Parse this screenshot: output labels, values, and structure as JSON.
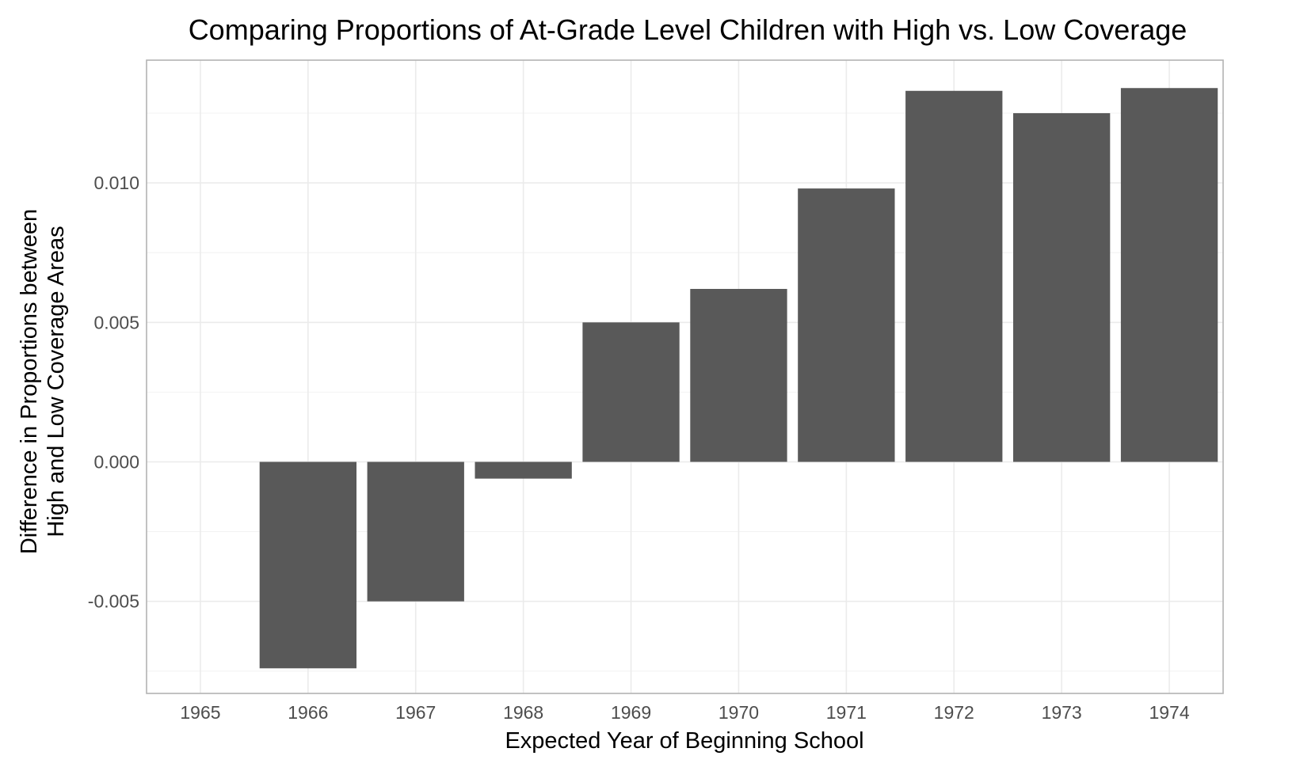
{
  "chart_data": {
    "type": "bar",
    "title": "Comparing Proportions of At-Grade Level Children with High vs. Low Coverage",
    "xlabel": "Expected Year of Beginning School",
    "ylabel_lines": [
      "Difference in Proportions between",
      "High and Low Coverage Areas"
    ],
    "categories": [
      "1965",
      "1966",
      "1967",
      "1968",
      "1969",
      "1970",
      "1971",
      "1972",
      "1973",
      "1974"
    ],
    "values": [
      null,
      -0.0074,
      -0.005,
      -0.0006,
      0.005,
      0.0062,
      0.0098,
      0.0133,
      0.0125,
      0.0134
    ],
    "y_ticks": [
      -0.005,
      0.0,
      0.005,
      0.01
    ],
    "y_tick_labels": [
      "-0.005",
      "0.000",
      "0.005",
      "0.010"
    ],
    "ylim": [
      -0.0083,
      0.0144
    ],
    "grid": true,
    "bar_color": "#595959",
    "theme": "light"
  }
}
